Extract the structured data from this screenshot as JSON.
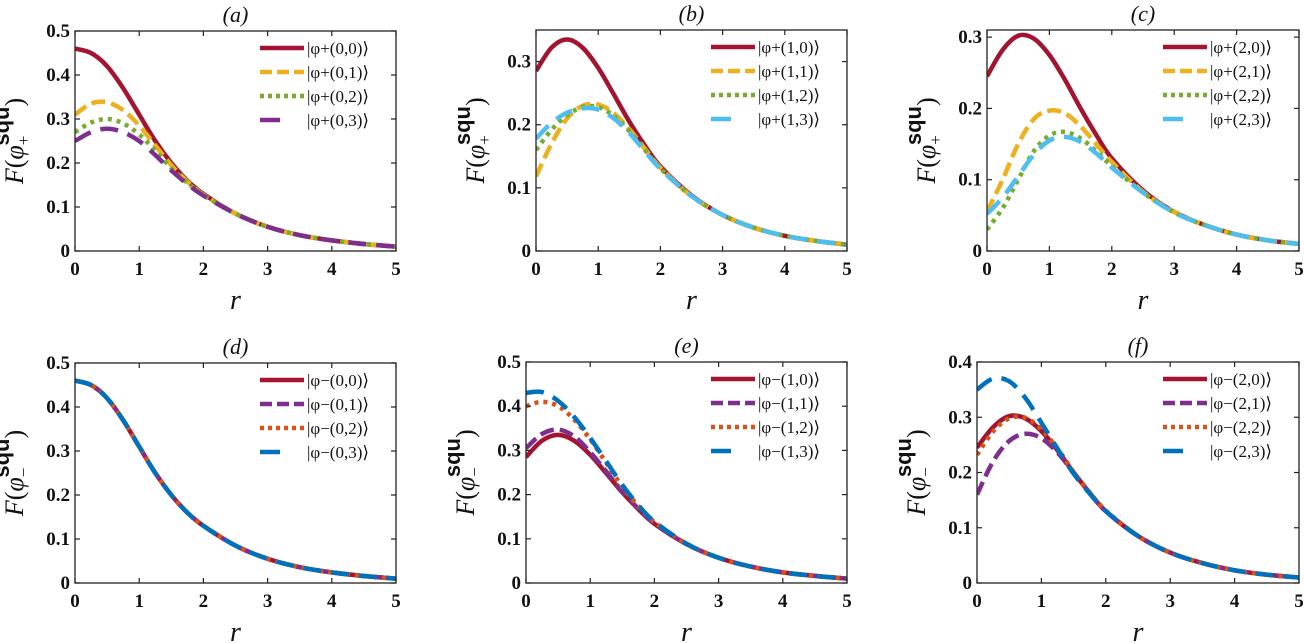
{
  "figure": {
    "type": "multi-panel line chart"
  },
  "chart_data": [
    {
      "type": "line",
      "panel": "a",
      "title": "(a)",
      "xlabel": "r",
      "ylabel": "F(φ+^squ)",
      "ylabel_main": "F(",
      "ylabel_sym": "φ",
      "ylabel_sub": "+",
      "ylabel_sup": "squ",
      "xlim": [
        0,
        5
      ],
      "ylim": [
        0,
        0.5
      ],
      "xticks": [
        0,
        1,
        2,
        3,
        4,
        5
      ],
      "yticks": [
        0,
        0.1,
        0.2,
        0.3,
        0.4,
        0.5
      ],
      "ytick_labels": [
        "0",
        "0.1",
        "0.2",
        "0.3",
        "0.4",
        "0.5"
      ],
      "grid": false,
      "legend_position": "top-right",
      "x": [
        0,
        0.25,
        0.5,
        0.75,
        1,
        1.25,
        1.5,
        1.75,
        2,
        2.5,
        3,
        3.5,
        4,
        4.5,
        5
      ],
      "series": [
        {
          "name": "|φ+(0,0)⟩",
          "color": "#a2142f",
          "dash": "solid",
          "values": [
            0.46,
            0.45,
            0.42,
            0.37,
            0.31,
            0.25,
            0.2,
            0.16,
            0.13,
            0.085,
            0.055,
            0.036,
            0.024,
            0.016,
            0.01
          ]
        },
        {
          "name": "|φ+(0,1)⟩",
          "color": "#edb120",
          "dash": "dashed",
          "values": [
            0.31,
            0.335,
            0.338,
            0.32,
            0.285,
            0.24,
            0.195,
            0.158,
            0.128,
            0.085,
            0.055,
            0.036,
            0.024,
            0.016,
            0.01
          ]
        },
        {
          "name": "|φ+(0,2)⟩",
          "color": "#77ac30",
          "dash": "dotted",
          "values": [
            0.27,
            0.292,
            0.3,
            0.29,
            0.265,
            0.228,
            0.188,
            0.155,
            0.127,
            0.085,
            0.055,
            0.036,
            0.024,
            0.016,
            0.01
          ]
        },
        {
          "name": "|φ+(0,3)⟩",
          "color": "#7e2f8e",
          "dash": "longdash",
          "values": [
            0.25,
            0.27,
            0.278,
            0.27,
            0.25,
            0.218,
            0.183,
            0.152,
            0.126,
            0.085,
            0.055,
            0.036,
            0.024,
            0.016,
            0.01
          ]
        }
      ]
    },
    {
      "type": "line",
      "panel": "b",
      "title": "(b)",
      "xlabel": "r",
      "ylabel": "F(φ+^squ)",
      "ylabel_main": "F(",
      "ylabel_sym": "φ",
      "ylabel_sub": "+",
      "ylabel_sup": "squ",
      "xlim": [
        0,
        5
      ],
      "ylim": [
        0,
        0.35
      ],
      "xticks": [
        0,
        1,
        2,
        3,
        4,
        5
      ],
      "yticks": [
        0,
        0.1,
        0.2,
        0.3
      ],
      "ytick_labels": [
        "0",
        "0.1",
        "0.2",
        "0.3"
      ],
      "grid": false,
      "legend_position": "top-right",
      "x": [
        0,
        0.25,
        0.5,
        0.75,
        1,
        1.25,
        1.5,
        1.75,
        2,
        2.5,
        3,
        3.5,
        4,
        4.5,
        5
      ],
      "series": [
        {
          "name": "|φ+(1,0)⟩",
          "color": "#a2142f",
          "dash": "solid",
          "values": [
            0.285,
            0.322,
            0.335,
            0.322,
            0.29,
            0.248,
            0.205,
            0.167,
            0.134,
            0.088,
            0.057,
            0.037,
            0.024,
            0.016,
            0.01
          ]
        },
        {
          "name": "|φ+(1,1)⟩",
          "color": "#edb120",
          "dash": "dashed",
          "values": [
            0.118,
            0.17,
            0.21,
            0.23,
            0.232,
            0.218,
            0.193,
            0.162,
            0.132,
            0.087,
            0.057,
            0.037,
            0.024,
            0.016,
            0.01
          ]
        },
        {
          "name": "|φ+(1,2)⟩",
          "color": "#77ac30",
          "dash": "dotted",
          "values": [
            0.16,
            0.192,
            0.215,
            0.228,
            0.228,
            0.214,
            0.19,
            0.16,
            0.131,
            0.087,
            0.057,
            0.037,
            0.024,
            0.016,
            0.01
          ]
        },
        {
          "name": "|φ+(1,3)⟩",
          "color": "#4dbeee",
          "dash": "longdash",
          "values": [
            0.178,
            0.203,
            0.219,
            0.226,
            0.224,
            0.21,
            0.187,
            0.158,
            0.13,
            0.087,
            0.057,
            0.037,
            0.024,
            0.016,
            0.01
          ]
        }
      ]
    },
    {
      "type": "line",
      "panel": "c",
      "title": "(c)",
      "xlabel": "r",
      "ylabel": "F(φ+^squ)",
      "ylabel_main": "F(",
      "ylabel_sym": "φ",
      "ylabel_sub": "+",
      "ylabel_sup": "squ",
      "xlim": [
        0,
        5
      ],
      "ylim": [
        0,
        0.31
      ],
      "xticks": [
        0,
        1,
        2,
        3,
        4,
        5
      ],
      "yticks": [
        0,
        0.1,
        0.2,
        0.3
      ],
      "ytick_labels": [
        "0",
        "0.1",
        "0.2",
        "0.3"
      ],
      "grid": false,
      "legend_position": "top-right",
      "x": [
        0,
        0.25,
        0.5,
        0.75,
        1,
        1.25,
        1.5,
        1.75,
        2,
        2.5,
        3,
        3.5,
        4,
        4.5,
        5
      ],
      "series": [
        {
          "name": "|φ+(2,0)⟩",
          "color": "#a2142f",
          "dash": "solid",
          "values": [
            0.245,
            0.282,
            0.302,
            0.298,
            0.275,
            0.24,
            0.2,
            0.163,
            0.13,
            0.085,
            0.055,
            0.036,
            0.023,
            0.015,
            0.01
          ]
        },
        {
          "name": "|φ+(2,1)⟩",
          "color": "#edb120",
          "dash": "dashed",
          "values": [
            0.055,
            0.1,
            0.15,
            0.185,
            0.197,
            0.193,
            0.175,
            0.15,
            0.125,
            0.083,
            0.055,
            0.036,
            0.023,
            0.015,
            0.01
          ]
        },
        {
          "name": "|φ+(2,2)⟩",
          "color": "#77ac30",
          "dash": "dotted",
          "values": [
            0.03,
            0.06,
            0.1,
            0.14,
            0.162,
            0.167,
            0.158,
            0.14,
            0.119,
            0.082,
            0.054,
            0.036,
            0.023,
            0.015,
            0.01
          ]
        },
        {
          "name": "|φ+(2,3)⟩",
          "color": "#4dbeee",
          "dash": "longdash",
          "values": [
            0.052,
            0.075,
            0.105,
            0.135,
            0.155,
            0.16,
            0.153,
            0.137,
            0.117,
            0.082,
            0.054,
            0.036,
            0.023,
            0.015,
            0.01
          ]
        }
      ]
    },
    {
      "type": "line",
      "panel": "d",
      "title": "(d)",
      "xlabel": "r",
      "ylabel": "F(φ−^squ)",
      "ylabel_main": "F(",
      "ylabel_sym": "φ",
      "ylabel_sub": "−",
      "ylabel_sup": "squ",
      "xlim": [
        0,
        5
      ],
      "ylim": [
        0,
        0.5
      ],
      "xticks": [
        0,
        1,
        2,
        3,
        4,
        5
      ],
      "yticks": [
        0,
        0.1,
        0.2,
        0.3,
        0.4,
        0.5
      ],
      "ytick_labels": [
        "0",
        "0.1",
        "0.2",
        "0.3",
        "0.4",
        "0.5"
      ],
      "grid": false,
      "legend_position": "top-right",
      "x": [
        0,
        0.25,
        0.5,
        0.75,
        1,
        1.25,
        1.5,
        1.75,
        2,
        2.5,
        3,
        3.5,
        4,
        4.5,
        5
      ],
      "series": [
        {
          "name": "|φ−(0,0)⟩",
          "color": "#a2142f",
          "dash": "solid",
          "values": [
            0.46,
            0.45,
            0.42,
            0.37,
            0.31,
            0.25,
            0.2,
            0.16,
            0.13,
            0.085,
            0.055,
            0.036,
            0.024,
            0.016,
            0.01
          ]
        },
        {
          "name": "|φ−(0,1)⟩",
          "color": "#7e2f8e",
          "dash": "dashed",
          "values": [
            0.46,
            0.45,
            0.42,
            0.37,
            0.31,
            0.25,
            0.2,
            0.16,
            0.13,
            0.085,
            0.055,
            0.036,
            0.024,
            0.016,
            0.01
          ]
        },
        {
          "name": "|φ−(0,2)⟩",
          "color": "#d95319",
          "dash": "dotted",
          "values": [
            0.46,
            0.45,
            0.42,
            0.37,
            0.31,
            0.25,
            0.2,
            0.16,
            0.13,
            0.085,
            0.055,
            0.036,
            0.024,
            0.016,
            0.01
          ]
        },
        {
          "name": "|φ−(0,3)⟩",
          "color": "#0072bd",
          "dash": "longdash",
          "values": [
            0.46,
            0.45,
            0.42,
            0.37,
            0.31,
            0.25,
            0.2,
            0.16,
            0.13,
            0.085,
            0.055,
            0.036,
            0.024,
            0.016,
            0.01
          ]
        }
      ]
    },
    {
      "type": "line",
      "panel": "e",
      "title": "(e)",
      "xlabel": "r",
      "ylabel": "F(φ−^squ)",
      "ylabel_main": "F(",
      "ylabel_sym": "φ",
      "ylabel_sub": "−",
      "ylabel_sup": "squ",
      "xlim": [
        0,
        5
      ],
      "ylim": [
        0,
        0.5
      ],
      "xticks": [
        0,
        1,
        2,
        3,
        4,
        5
      ],
      "yticks": [
        0,
        0.1,
        0.2,
        0.3,
        0.4,
        0.5
      ],
      "ytick_labels": [
        "0",
        "0.1",
        "0.2",
        "0.3",
        "0.4",
        "0.5"
      ],
      "grid": false,
      "legend_position": "top-right",
      "x": [
        0,
        0.25,
        0.5,
        0.75,
        1,
        1.25,
        1.5,
        1.75,
        2,
        2.5,
        3,
        3.5,
        4,
        4.5,
        5
      ],
      "series": [
        {
          "name": "|φ−(1,0)⟩",
          "color": "#a2142f",
          "dash": "solid",
          "values": [
            0.285,
            0.322,
            0.335,
            0.322,
            0.29,
            0.248,
            0.205,
            0.167,
            0.134,
            0.088,
            0.057,
            0.037,
            0.024,
            0.016,
            0.01
          ]
        },
        {
          "name": "|φ−(1,1)⟩",
          "color": "#7e2f8e",
          "dash": "dashed",
          "values": [
            0.305,
            0.337,
            0.347,
            0.332,
            0.296,
            0.252,
            0.207,
            0.168,
            0.135,
            0.088,
            0.057,
            0.037,
            0.024,
            0.016,
            0.01
          ]
        },
        {
          "name": "|φ−(1,2)⟩",
          "color": "#d95319",
          "dash": "dotted",
          "values": [
            0.4,
            0.41,
            0.4,
            0.37,
            0.325,
            0.272,
            0.218,
            0.174,
            0.138,
            0.089,
            0.057,
            0.037,
            0.024,
            0.016,
            0.01
          ]
        },
        {
          "name": "|φ−(1,3)⟩",
          "color": "#0072bd",
          "dash": "longdash",
          "values": [
            0.43,
            0.432,
            0.412,
            0.376,
            0.328,
            0.275,
            0.222,
            0.176,
            0.139,
            0.089,
            0.057,
            0.037,
            0.024,
            0.016,
            0.01
          ]
        }
      ]
    },
    {
      "type": "line",
      "panel": "f",
      "title": "(f)",
      "xlabel": "r",
      "ylabel": "F(φ−^squ)",
      "ylabel_main": "F(",
      "ylabel_sym": "φ",
      "ylabel_sub": "−",
      "ylabel_sup": "squ",
      "xlim": [
        0,
        5
      ],
      "ylim": [
        0,
        0.4
      ],
      "xticks": [
        0,
        1,
        2,
        3,
        4,
        5
      ],
      "yticks": [
        0,
        0.1,
        0.2,
        0.3,
        0.4
      ],
      "ytick_labels": [
        "0",
        "0.1",
        "0.2",
        "0.3",
        "0.4"
      ],
      "grid": false,
      "legend_position": "top-right",
      "x": [
        0,
        0.25,
        0.5,
        0.75,
        1,
        1.25,
        1.5,
        1.75,
        2,
        2.5,
        3,
        3.5,
        4,
        4.5,
        5
      ],
      "series": [
        {
          "name": "|φ−(2,0)⟩",
          "color": "#a2142f",
          "dash": "solid",
          "values": [
            0.245,
            0.282,
            0.302,
            0.298,
            0.275,
            0.24,
            0.2,
            0.163,
            0.13,
            0.085,
            0.055,
            0.036,
            0.023,
            0.015,
            0.01
          ]
        },
        {
          "name": "|φ−(2,1)⟩",
          "color": "#7e2f8e",
          "dash": "dashed",
          "values": [
            0.16,
            0.22,
            0.257,
            0.27,
            0.262,
            0.236,
            0.2,
            0.163,
            0.13,
            0.085,
            0.055,
            0.036,
            0.023,
            0.015,
            0.01
          ]
        },
        {
          "name": "|φ−(2,2)⟩",
          "color": "#d95319",
          "dash": "dotted",
          "values": [
            0.232,
            0.274,
            0.298,
            0.299,
            0.278,
            0.243,
            0.201,
            0.164,
            0.131,
            0.085,
            0.055,
            0.036,
            0.023,
            0.015,
            0.01
          ]
        },
        {
          "name": "|φ−(2,3)⟩",
          "color": "#0072bd",
          "dash": "longdash",
          "values": [
            0.35,
            0.37,
            0.365,
            0.335,
            0.29,
            0.243,
            0.198,
            0.162,
            0.13,
            0.085,
            0.055,
            0.036,
            0.023,
            0.015,
            0.01
          ]
        }
      ]
    }
  ]
}
